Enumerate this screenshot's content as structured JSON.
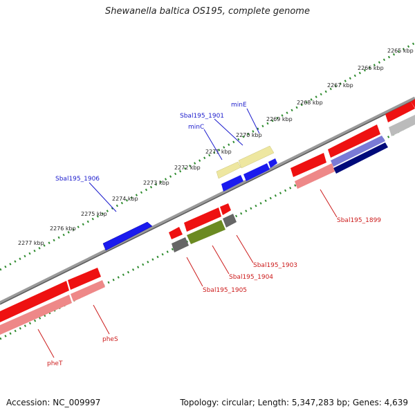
{
  "title": "Shewanella baltica OS195, complete genome",
  "footer": {
    "accession": "Accession: NC_009997",
    "summary": "Topology: circular; Length: 5,347,283 bp; Genes: 4,639"
  },
  "colors": {
    "backbone": "#808080",
    "tick": "#2e8b2e",
    "forward_label": "#1a1acc",
    "reverse_label": "#cc1a1a"
  },
  "kbp_labels": [
    "2265 kbp",
    "2266 kbp",
    "2267 kbp",
    "2268 kbp",
    "2269 kbp",
    "2270 kbp",
    "2271 kbp",
    "2272 kbp",
    "2273 kbp",
    "2274 kbp",
    "2275 kbp",
    "2276 kbp",
    "2277 kbp"
  ],
  "forward_genes": [
    "Sbal195_1906",
    "minC",
    "Sbal195_1901",
    "minE"
  ],
  "reverse_genes": [
    "pheT",
    "pheS",
    "Sbal195_1905",
    "Sbal195_1904",
    "Sbal195_1903",
    "Sbal195_1899"
  ]
}
